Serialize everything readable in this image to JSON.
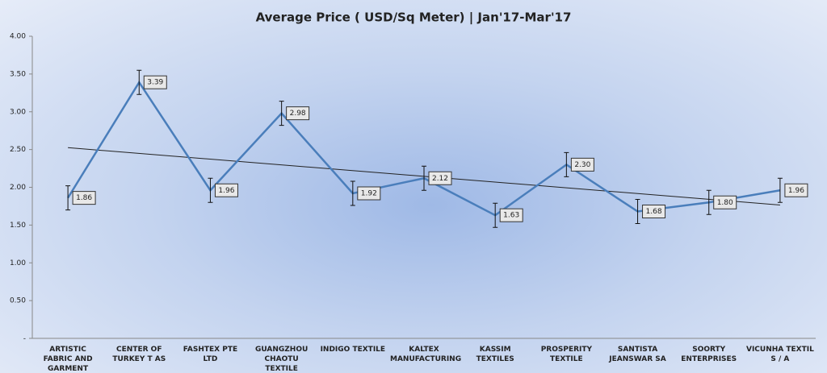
{
  "chart_data": {
    "type": "line",
    "title": "Average Price ( USD/Sq Meter) | Jan'17-Mar'17",
    "categories": [
      "ARTISTIC FABRIC AND GARMENT",
      "CENTER OF TURKEY T AS",
      "FASHTEX PTE LTD",
      "GUANGZHOU CHAOTU TEXTILE",
      "INDIGO TEXTILE",
      "KALTEX MANUFACTURING",
      "KASSIM TEXTILES",
      "PROSPERITY TEXTILE",
      "SANTISTA JEANSWAR SA",
      "SOORTY ENTERPRISES",
      "VICUNHA TEXTIL S / A"
    ],
    "values": [
      1.86,
      3.39,
      1.96,
      2.98,
      1.92,
      2.12,
      1.63,
      2.3,
      1.68,
      1.8,
      1.96
    ],
    "value_labels": [
      "1.86",
      "3.39",
      "1.96",
      "2.98",
      "1.92",
      "2.12",
      "1.63",
      "2.30",
      "1.68",
      "1.80",
      "1.96"
    ],
    "errors": [
      0.16,
      0.16,
      0.16,
      0.16,
      0.16,
      0.16,
      0.16,
      0.16,
      0.16,
      0.16,
      0.16
    ],
    "color": "#4a7ebb",
    "trendline": "linear",
    "ylim": [
      0,
      4
    ],
    "yticks": [
      {
        "value": 0,
        "label": "-"
      },
      {
        "value": 0.5,
        "label": "0.50"
      },
      {
        "value": 1,
        "label": "1.00"
      },
      {
        "value": 1.5,
        "label": "1.50"
      },
      {
        "value": 2,
        "label": "2.00"
      },
      {
        "value": 2.5,
        "label": "2.50"
      },
      {
        "value": 3,
        "label": "3.00"
      },
      {
        "value": 3.5,
        "label": "3.50"
      },
      {
        "value": 4,
        "label": "4.00"
      }
    ]
  }
}
